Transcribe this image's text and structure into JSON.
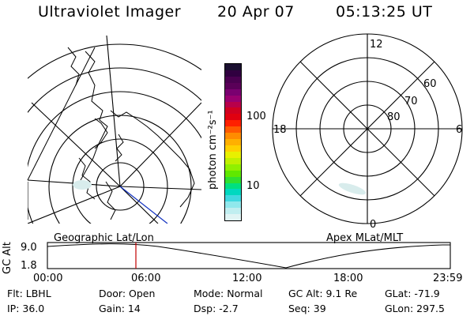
{
  "header": {
    "title": "Ultraviolet Imager",
    "date": "20 Apr 07",
    "time": "05:13:25 UT"
  },
  "colorbar": {
    "label": "photon cm⁻²s⁻¹",
    "ticks": [
      "100",
      "10"
    ],
    "colors": [
      "#1a1030",
      "#300040",
      "#4a0050",
      "#5a0058",
      "#7a0070",
      "#990070",
      "#b8004a",
      "#d00020",
      "#e00010",
      "#ff2000",
      "#ff5a00",
      "#ff8c00",
      "#ffb000",
      "#ffd000",
      "#e8f000",
      "#c0f000",
      "#90f000",
      "#60e800",
      "#30e030",
      "#00e080",
      "#00d8c0",
      "#40d8e0",
      "#90e8ec",
      "#c0eef0",
      "#e0f4f4"
    ]
  },
  "polar_plot": {
    "mlt_labels": [
      "12",
      "6",
      "0",
      "18"
    ],
    "lat_labels": [
      "60",
      "70",
      "80"
    ]
  },
  "timeline": {
    "left_label": "Geographic Lat/Lon",
    "right_label": "Apex MLat/MLT",
    "axis_title": "GC Alt",
    "y_ticks": [
      "9.0",
      "1.8"
    ],
    "x_ticks": [
      "00:00",
      "06:00",
      "12:00",
      "18:00",
      "23:59"
    ],
    "cursor_color": "#c00000"
  },
  "info": {
    "filter": "Flt: LBHL",
    "ip": "IP: 36.0",
    "door": "Door: Open",
    "gain": "Gain: 14",
    "mode": "Mode: Normal",
    "dsp": "Dsp:    -2.7",
    "gc_alt": "GC Alt: 9.1 Re",
    "seq": "Seq: 39",
    "glat": "GLat: -71.9",
    "glon": "GLon: 297.5"
  }
}
